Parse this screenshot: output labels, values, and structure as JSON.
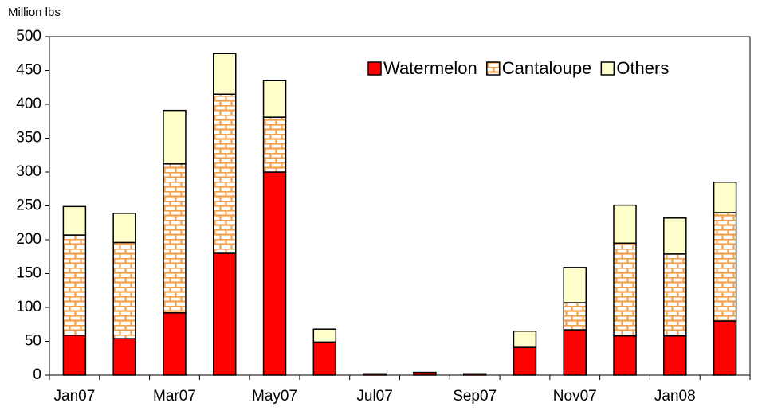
{
  "chart_data": {
    "type": "stacked-bar",
    "y_label": "Million lbs",
    "categories": [
      "Jan07",
      null,
      "Mar07",
      null,
      "May07",
      null,
      "Jul07",
      null,
      "Sep07",
      null,
      "Nov07",
      null,
      "Jan08",
      null
    ],
    "series": [
      {
        "name": "Watermelon",
        "color": "#ff0000",
        "values": [
          59,
          54,
          92,
          180,
          300,
          49,
          2,
          4,
          2,
          41,
          67,
          58,
          58,
          80
        ]
      },
      {
        "name": "Cantaloupe",
        "color": "#f5a04a",
        "pattern": "brick",
        "values": [
          148,
          142,
          220,
          235,
          81,
          0,
          0,
          0,
          0,
          0,
          40,
          137,
          121,
          160
        ]
      },
      {
        "name": "Others",
        "color": "#ffffcc",
        "values": [
          42,
          43,
          79,
          60,
          54,
          19,
          0,
          0,
          0,
          24,
          52,
          56,
          53,
          45
        ]
      }
    ],
    "ylim": [
      0,
      500
    ],
    "yticks": [
      0,
      50,
      100,
      150,
      200,
      250,
      300,
      350,
      400,
      450,
      500
    ],
    "legend_position": "top-right"
  }
}
